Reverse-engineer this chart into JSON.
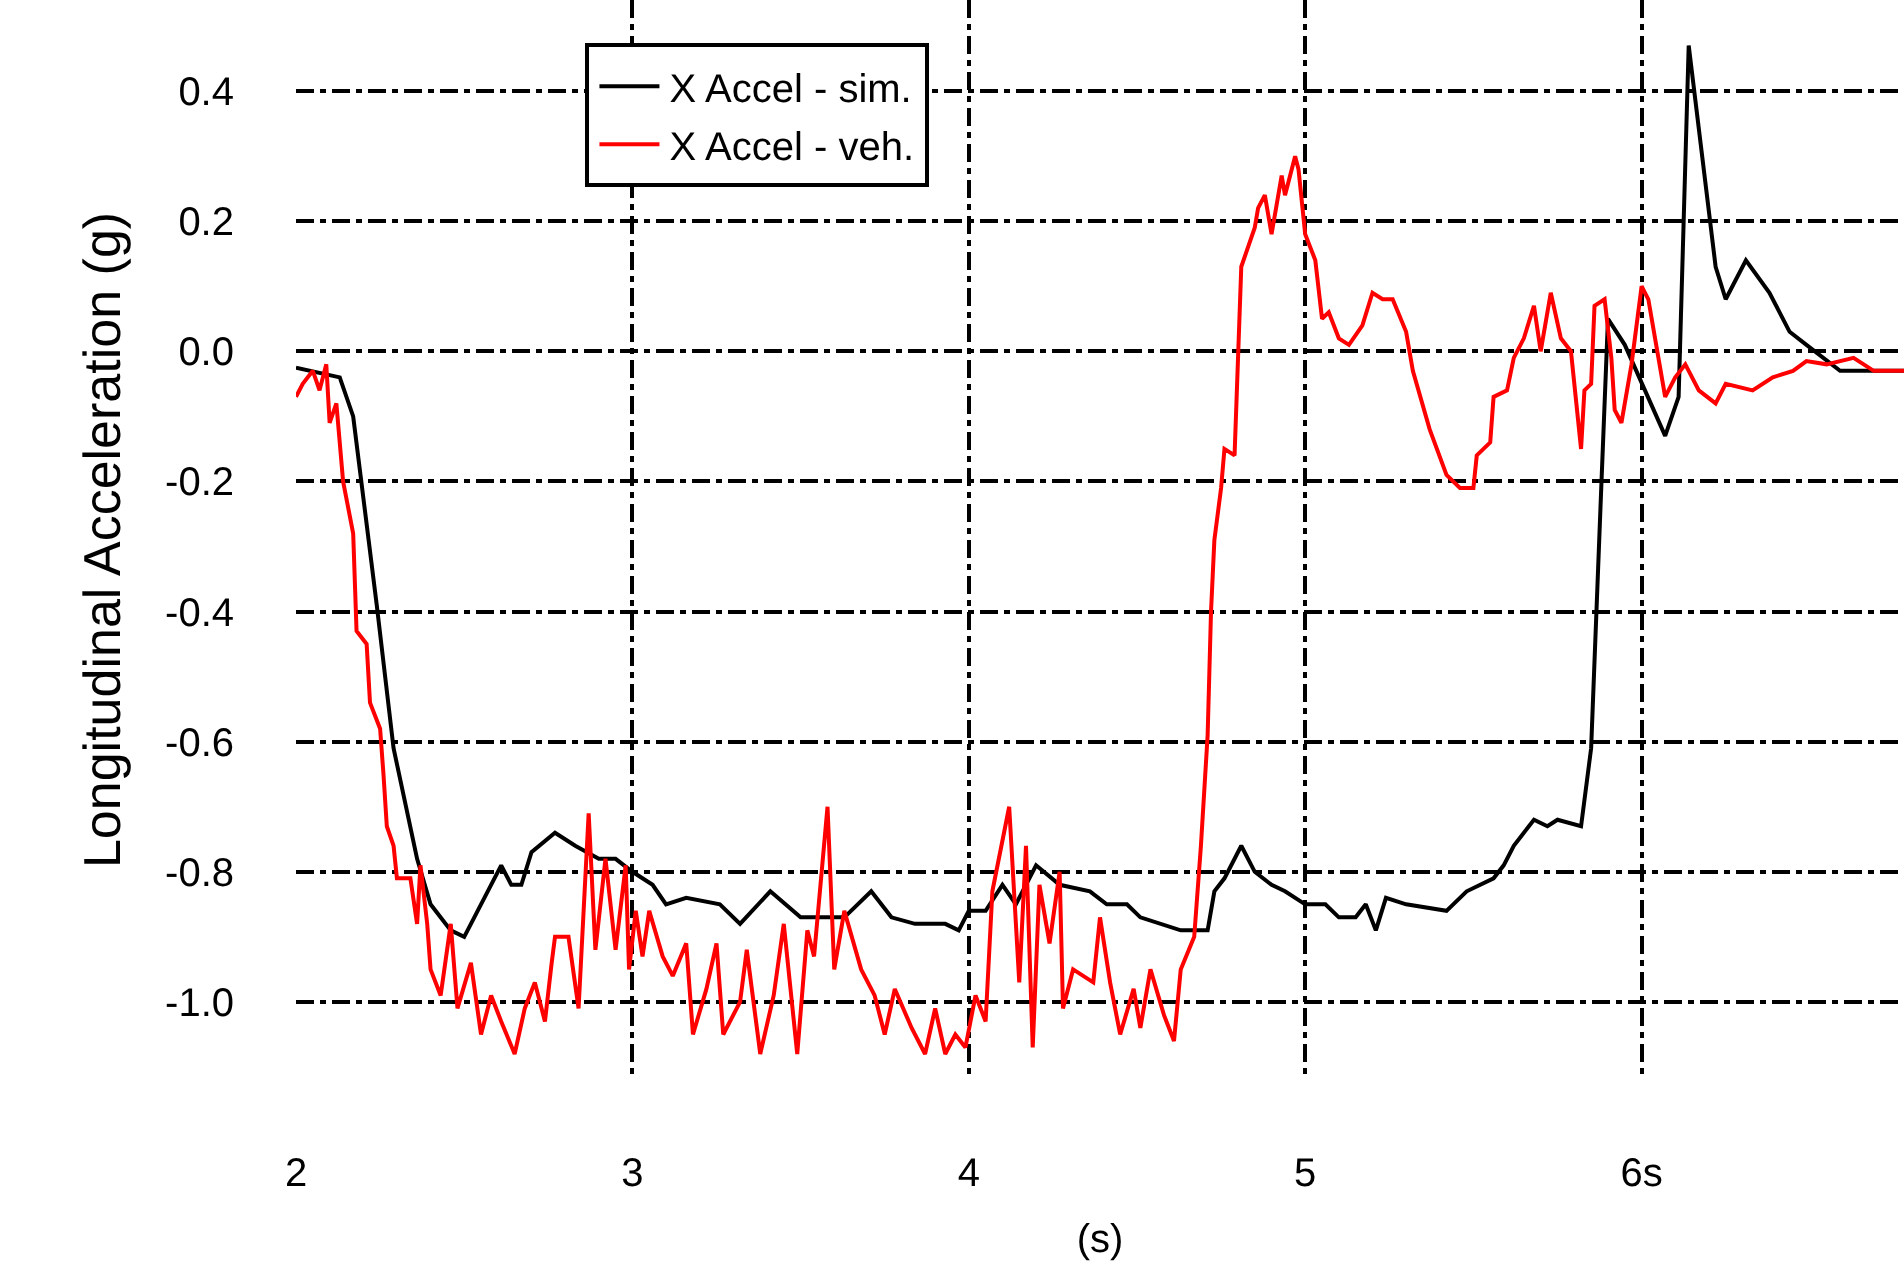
{
  "chart_data": {
    "type": "line",
    "xlabel": "(s)",
    "ylabel": "Longitudinal Acceleration (g)",
    "xlim": [
      2,
      6.78
    ],
    "ylim": [
      -1.12,
      0.54
    ],
    "xticks": [
      2,
      3,
      4,
      5,
      {
        "value": 6,
        "label": "6s"
      }
    ],
    "yticks": [
      {
        "value": 0.4,
        "label": "0.4"
      },
      {
        "value": 0.2,
        "label": "0.2"
      },
      {
        "value": 0,
        "label": "0.0"
      },
      {
        "value": -0.2,
        "label": "-0.2"
      },
      {
        "value": -0.4,
        "label": "-0.4"
      },
      {
        "value": -0.6,
        "label": "-0.6"
      },
      {
        "value": -0.8,
        "label": "-0.8"
      },
      {
        "value": -1.0,
        "label": "-1.0"
      }
    ],
    "grid": true,
    "legend": "top left",
    "line_style": "solid",
    "marker": "none",
    "series": [
      {
        "name": "X Accel - sim.",
        "color": "#000000",
        "x": [
          2.0,
          2.13,
          2.17,
          2.24,
          2.29,
          2.36,
          2.4,
          2.46,
          2.5,
          2.54,
          2.61,
          2.64,
          2.67,
          2.7,
          2.77,
          2.83,
          2.9,
          2.95,
          3.0,
          3.06,
          3.1,
          3.16,
          3.26,
          3.32,
          3.41,
          3.5,
          3.63,
          3.71,
          3.77,
          3.84,
          3.93,
          3.97,
          4.0,
          4.05,
          4.1,
          4.14,
          4.2,
          4.27,
          4.36,
          4.41,
          4.47,
          4.51,
          4.63,
          4.71,
          4.73,
          4.76,
          4.81,
          4.85,
          4.9,
          4.94,
          5.0,
          5.06,
          5.1,
          5.15,
          5.18,
          5.21,
          5.24,
          5.3,
          5.42,
          5.48,
          5.56,
          5.59,
          5.62,
          5.68,
          5.72,
          5.75,
          5.82,
          5.85,
          5.88,
          5.9,
          5.95,
          6.01,
          6.07,
          6.11,
          6.14,
          6.22,
          6.25,
          6.31,
          6.38,
          6.44,
          6.49,
          6.59,
          6.78
        ],
        "values": [
          -0.025,
          -0.04,
          -0.1,
          -0.39,
          -0.61,
          -0.78,
          -0.85,
          -0.89,
          -0.9,
          -0.86,
          -0.79,
          -0.82,
          -0.82,
          -0.77,
          -0.74,
          -0.76,
          -0.78,
          -0.78,
          -0.8,
          -0.82,
          -0.85,
          -0.84,
          -0.85,
          -0.88,
          -0.83,
          -0.87,
          -0.87,
          -0.83,
          -0.87,
          -0.88,
          -0.88,
          -0.89,
          -0.86,
          -0.86,
          -0.82,
          -0.85,
          -0.79,
          -0.82,
          -0.83,
          -0.85,
          -0.85,
          -0.87,
          -0.89,
          -0.89,
          -0.83,
          -0.81,
          -0.76,
          -0.8,
          -0.82,
          -0.83,
          -0.85,
          -0.85,
          -0.87,
          -0.87,
          -0.85,
          -0.89,
          -0.84,
          -0.85,
          -0.86,
          -0.83,
          -0.81,
          -0.79,
          -0.76,
          -0.72,
          -0.73,
          -0.72,
          -0.73,
          -0.61,
          -0.21,
          0.05,
          0.01,
          -0.06,
          -0.13,
          -0.07,
          0.47,
          0.13,
          0.08,
          0.14,
          0.09,
          0.03,
          0.01,
          -0.03,
          -0.03
        ]
      },
      {
        "name": "X Accel - veh.",
        "color": "#ff0000",
        "x": [
          2.0,
          2.02,
          2.05,
          2.07,
          2.09,
          2.1,
          2.12,
          2.14,
          2.17,
          2.18,
          2.21,
          2.22,
          2.25,
          2.26,
          2.27,
          2.29,
          2.3,
          2.34,
          2.36,
          2.37,
          2.39,
          2.4,
          2.43,
          2.46,
          2.48,
          2.52,
          2.55,
          2.58,
          2.61,
          2.65,
          2.68,
          2.71,
          2.74,
          2.76,
          2.77,
          2.81,
          2.84,
          2.87,
          2.89,
          2.92,
          2.95,
          2.98,
          2.99,
          3.01,
          3.03,
          3.05,
          3.09,
          3.12,
          3.16,
          3.18,
          3.22,
          3.25,
          3.27,
          3.32,
          3.34,
          3.38,
          3.42,
          3.45,
          3.49,
          3.52,
          3.54,
          3.58,
          3.6,
          3.63,
          3.68,
          3.72,
          3.75,
          3.78,
          3.83,
          3.87,
          3.9,
          3.93,
          3.96,
          3.99,
          4.02,
          4.05,
          4.07,
          4.12,
          4.15,
          4.17,
          4.19,
          4.21,
          4.24,
          4.27,
          4.28,
          4.31,
          4.37,
          4.39,
          4.42,
          4.45,
          4.49,
          4.51,
          4.54,
          4.58,
          4.61,
          4.63,
          4.67,
          4.69,
          4.71,
          4.72,
          4.73,
          4.75,
          4.76,
          4.79,
          4.81,
          4.85,
          4.86,
          4.88,
          4.9,
          4.93,
          4.94,
          4.97,
          4.98,
          5.0,
          5.03,
          5.05,
          5.07,
          5.1,
          5.13,
          5.17,
          5.2,
          5.23,
          5.26,
          5.3,
          5.32,
          5.37,
          5.42,
          5.46,
          5.5,
          5.51,
          5.55,
          5.56,
          5.6,
          5.62,
          5.65,
          5.68,
          5.7,
          5.73,
          5.76,
          5.79,
          5.82,
          5.83,
          5.85,
          5.86,
          5.89,
          5.91,
          5.92,
          5.94,
          5.97,
          6.0,
          6.02,
          6.04,
          6.07,
          6.1,
          6.13,
          6.17,
          6.22,
          6.25,
          6.33,
          6.39,
          6.45,
          6.49,
          6.55,
          6.63,
          6.69,
          6.78
        ],
        "values": [
          -0.07,
          -0.05,
          -0.03,
          -0.06,
          -0.02,
          -0.11,
          -0.08,
          -0.2,
          -0.28,
          -0.43,
          -0.45,
          -0.54,
          -0.58,
          -0.65,
          -0.73,
          -0.76,
          -0.81,
          -0.81,
          -0.88,
          -0.79,
          -0.88,
          -0.95,
          -0.99,
          -0.88,
          -1.01,
          -0.94,
          -1.05,
          -0.99,
          -1.03,
          -1.08,
          -1.01,
          -0.97,
          -1.03,
          -0.94,
          -0.9,
          -0.9,
          -1.01,
          -0.71,
          -0.92,
          -0.78,
          -0.92,
          -0.79,
          -0.95,
          -0.86,
          -0.93,
          -0.86,
          -0.93,
          -0.96,
          -0.91,
          -1.05,
          -0.98,
          -0.91,
          -1.05,
          -1.0,
          -0.92,
          -1.08,
          -0.99,
          -0.88,
          -1.08,
          -0.89,
          -0.93,
          -0.7,
          -0.95,
          -0.86,
          -0.95,
          -0.99,
          -1.05,
          -0.98,
          -1.04,
          -1.08,
          -1.01,
          -1.08,
          -1.05,
          -1.07,
          -0.99,
          -1.03,
          -0.83,
          -0.7,
          -0.97,
          -0.76,
          -1.07,
          -0.82,
          -0.91,
          -0.8,
          -1.01,
          -0.95,
          -0.97,
          -0.87,
          -0.97,
          -1.05,
          -0.98,
          -1.04,
          -0.95,
          -1.02,
          -1.06,
          -0.95,
          -0.9,
          -0.76,
          -0.59,
          -0.4,
          -0.29,
          -0.21,
          -0.15,
          -0.16,
          0.13,
          0.19,
          0.22,
          0.24,
          0.18,
          0.27,
          0.24,
          0.3,
          0.28,
          0.18,
          0.14,
          0.05,
          0.06,
          0.02,
          0.01,
          0.04,
          0.09,
          0.08,
          0.08,
          0.03,
          -0.03,
          -0.12,
          -0.19,
          -0.21,
          -0.21,
          -0.16,
          -0.14,
          -0.07,
          -0.06,
          -0.01,
          0.02,
          0.07,
          0.0,
          0.09,
          0.02,
          0.0,
          -0.15,
          -0.06,
          -0.05,
          0.07,
          0.08,
          -0.01,
          -0.09,
          -0.11,
          -0.02,
          0.1,
          0.08,
          0.02,
          -0.07,
          -0.04,
          -0.02,
          -0.06,
          -0.08,
          -0.05,
          -0.06,
          -0.04,
          -0.03,
          -0.015,
          -0.02,
          -0.01,
          -0.03,
          -0.03
        ]
      }
    ]
  }
}
